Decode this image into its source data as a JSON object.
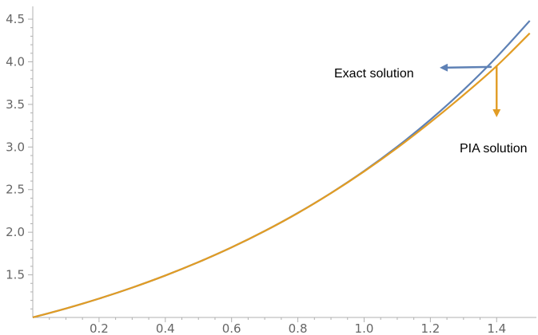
{
  "chart_data": {
    "type": "line",
    "title": "",
    "xlabel": "",
    "ylabel": "",
    "xlim": [
      0,
      1.52
    ],
    "ylim": [
      1.0,
      4.65
    ],
    "x_ticks": [
      0.2,
      0.4,
      0.6,
      0.8,
      1.0,
      1.2,
      1.4
    ],
    "x_tick_labels": [
      "0.2",
      "0.4",
      "0.6",
      "0.8",
      "1.0",
      "1.2",
      "1.4"
    ],
    "y_ticks": [
      1.5,
      2.0,
      2.5,
      3.0,
      3.5,
      4.0,
      4.5
    ],
    "y_tick_labels": [
      "1.5",
      "2.0",
      "2.5",
      "3.0",
      "3.5",
      "4.0",
      "4.5"
    ],
    "grid": false,
    "series": [
      {
        "name": "Exact solution",
        "color": "#5e81b5",
        "x": [
          0,
          0.1,
          0.2,
          0.3,
          0.4,
          0.5,
          0.6,
          0.7,
          0.8,
          0.9,
          1.0,
          1.1,
          1.2,
          1.3,
          1.4,
          1.5
        ],
        "y": [
          1.0,
          1.105,
          1.221,
          1.35,
          1.492,
          1.649,
          1.822,
          2.014,
          2.226,
          2.46,
          2.718,
          3.004,
          3.32,
          3.669,
          4.055,
          4.482
        ]
      },
      {
        "name": "PIA solution",
        "color": "#e19c24",
        "x": [
          0,
          0.1,
          0.2,
          0.3,
          0.4,
          0.5,
          0.6,
          0.7,
          0.8,
          0.9,
          1.0,
          1.1,
          1.2,
          1.3,
          1.4,
          1.5
        ],
        "y": [
          1.0,
          1.105,
          1.221,
          1.35,
          1.492,
          1.649,
          1.822,
          2.014,
          2.225,
          2.458,
          2.713,
          2.99,
          3.29,
          3.61,
          3.95,
          4.335
        ]
      }
    ],
    "annotations": [
      {
        "text": "Exact solution",
        "color": "#5e81b5",
        "points_to": [
          1.38,
          3.94
        ]
      },
      {
        "text": "PIA solution",
        "color": "#e19c24",
        "points_to": [
          1.4,
          3.92
        ]
      }
    ]
  }
}
